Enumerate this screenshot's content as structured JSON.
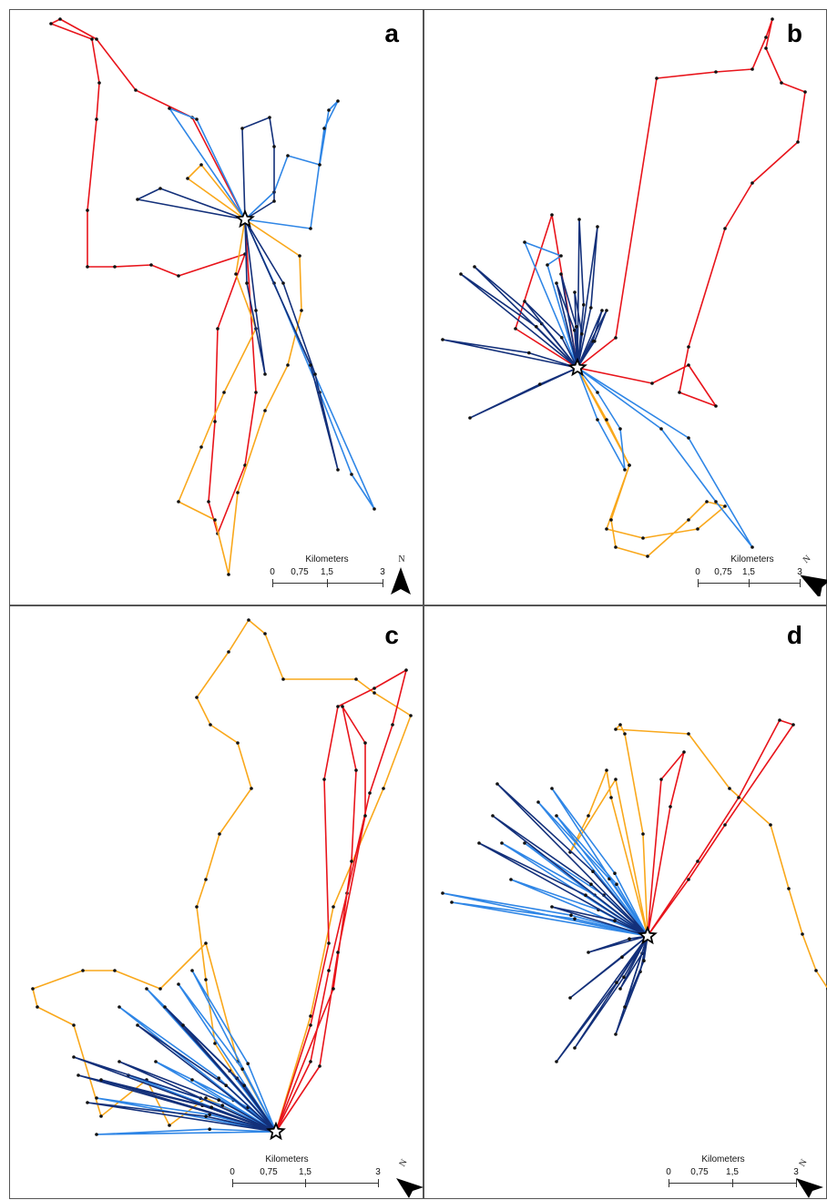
{
  "panels": [
    {
      "id": "a",
      "label": "a"
    },
    {
      "id": "b",
      "label": "b"
    },
    {
      "id": "c",
      "label": "c"
    },
    {
      "id": "d",
      "label": "d"
    }
  ],
  "scalebar": {
    "title": "Kilometers",
    "ticks": [
      "0",
      "0,75",
      "1,5",
      "3"
    ]
  },
  "north_arrow": {
    "letter": "N"
  },
  "colors": {
    "red": "#e8141b",
    "orange": "#f9a81c",
    "light_blue": "#2f86e6",
    "dark_blue": "#13307a"
  },
  "legend_series_colors": [
    "red",
    "orange",
    "light_blue",
    "dark_blue"
  ]
}
